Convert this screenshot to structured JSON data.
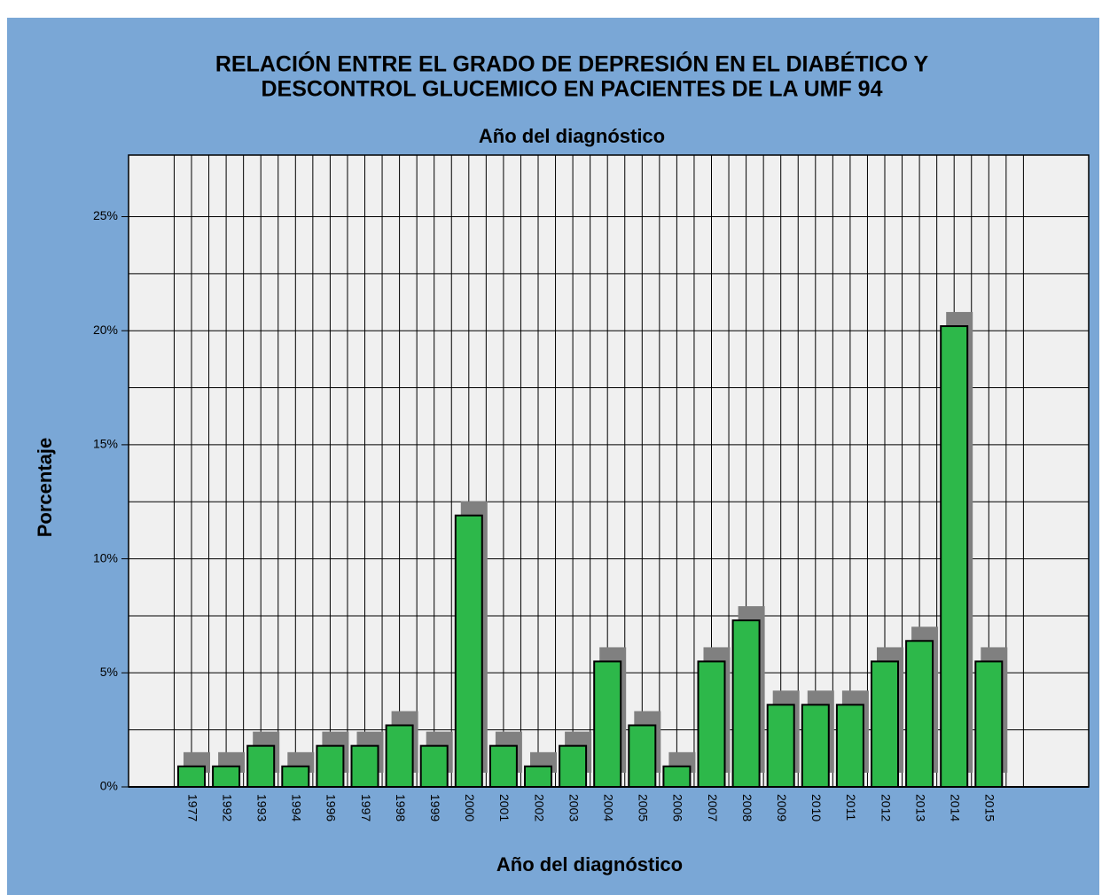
{
  "chart_data": {
    "type": "bar",
    "title": [
      "RELACIÓN ENTRE EL GRADO DE  DEPRESIÓN EN EL DIABÉTICO Y",
      "DESCONTROL GLUCEMICO EN PACIENTES DE LA UMF  94"
    ],
    "subtitle": "Año del diagnóstico",
    "x_label": "Año del diagnóstico",
    "y_label": "Porcentaje",
    "categories": [
      "1977",
      "1992",
      "1993",
      "1994",
      "1996",
      "1997",
      "1998",
      "1999",
      "2000",
      "2001",
      "2002",
      "2003",
      "2004",
      "2005",
      "2006",
      "2007",
      "2008",
      "2009",
      "2010",
      "2011",
      "2012",
      "2013",
      "2014",
      "2015"
    ],
    "values": [
      0.9,
      0.9,
      1.8,
      0.9,
      1.8,
      1.8,
      2.7,
      1.8,
      11.9,
      1.8,
      0.9,
      1.8,
      5.5,
      2.7,
      0.9,
      5.5,
      7.3,
      3.6,
      3.6,
      3.6,
      5.5,
      6.4,
      20.2,
      5.5
    ],
    "color": "#2db84a",
    "ylim": [
      0,
      27.7
    ],
    "yticks": [
      {
        "value": 0,
        "label": "0%"
      },
      {
        "value": 5,
        "label": "5%"
      },
      {
        "value": 10,
        "label": "10%"
      },
      {
        "value": 15,
        "label": "15%"
      },
      {
        "value": 20,
        "label": "20%"
      },
      {
        "value": 25,
        "label": "25%"
      }
    ],
    "minor_yticks": [
      2.5,
      7.5,
      12.5,
      17.5,
      22.5
    ],
    "grid": true
  }
}
